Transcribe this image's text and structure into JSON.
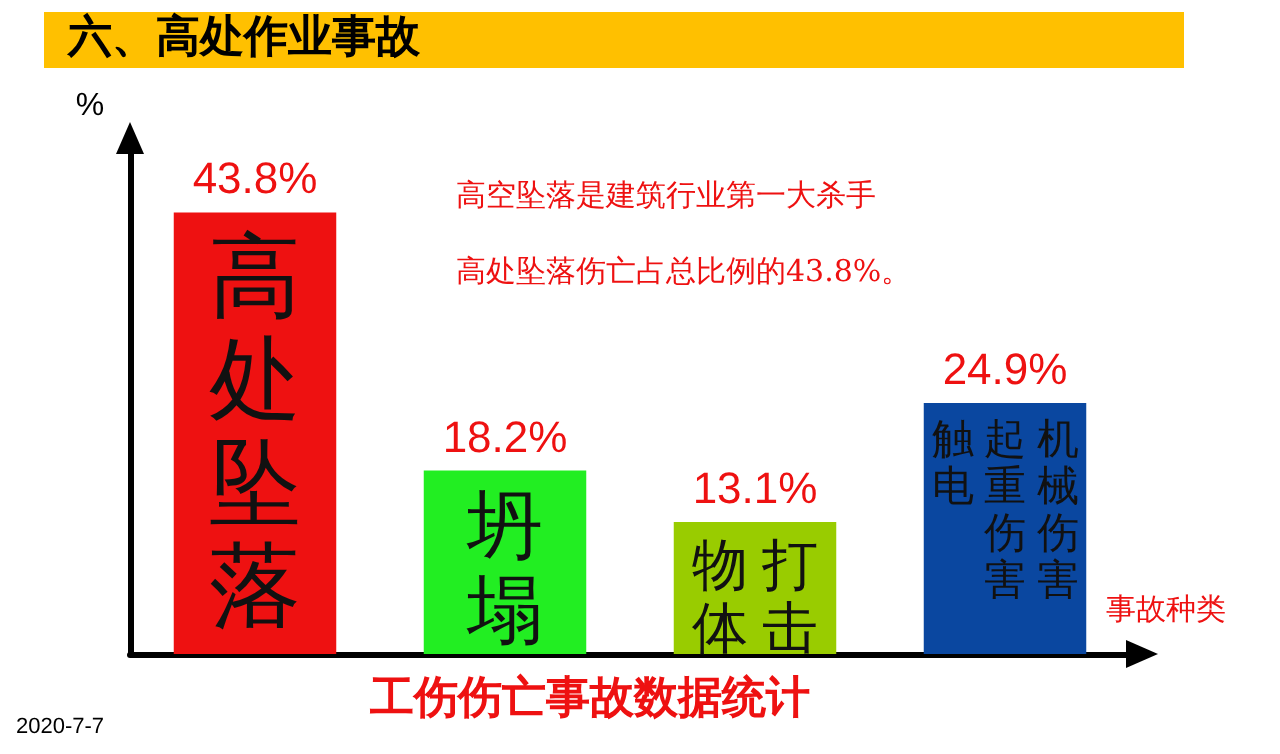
{
  "chart_data": {
    "type": "bar",
    "title": "六、高处作业事故",
    "ylabel": "%",
    "xlabel": "事故种类",
    "categories": [
      "高处坠落",
      "坍塌",
      "物体打击",
      "触电起重伤害机械伤害"
    ],
    "values": [
      43.8,
      18.2,
      13.1,
      24.9
    ],
    "value_labels": [
      "43.8%",
      "18.2%",
      "13.1%",
      "24.9%"
    ],
    "colors": [
      "#ee1111",
      "#22ee22",
      "#99cc00",
      "#0a47a0"
    ],
    "annotations": [
      "高空坠落是建筑行业第一大杀手",
      "高处坠落伤亡占总比例的43.8%。",
      "工伤伤亡事故数据统计",
      "2020-7-7"
    ],
    "tick_labels": false,
    "grid": false
  }
}
